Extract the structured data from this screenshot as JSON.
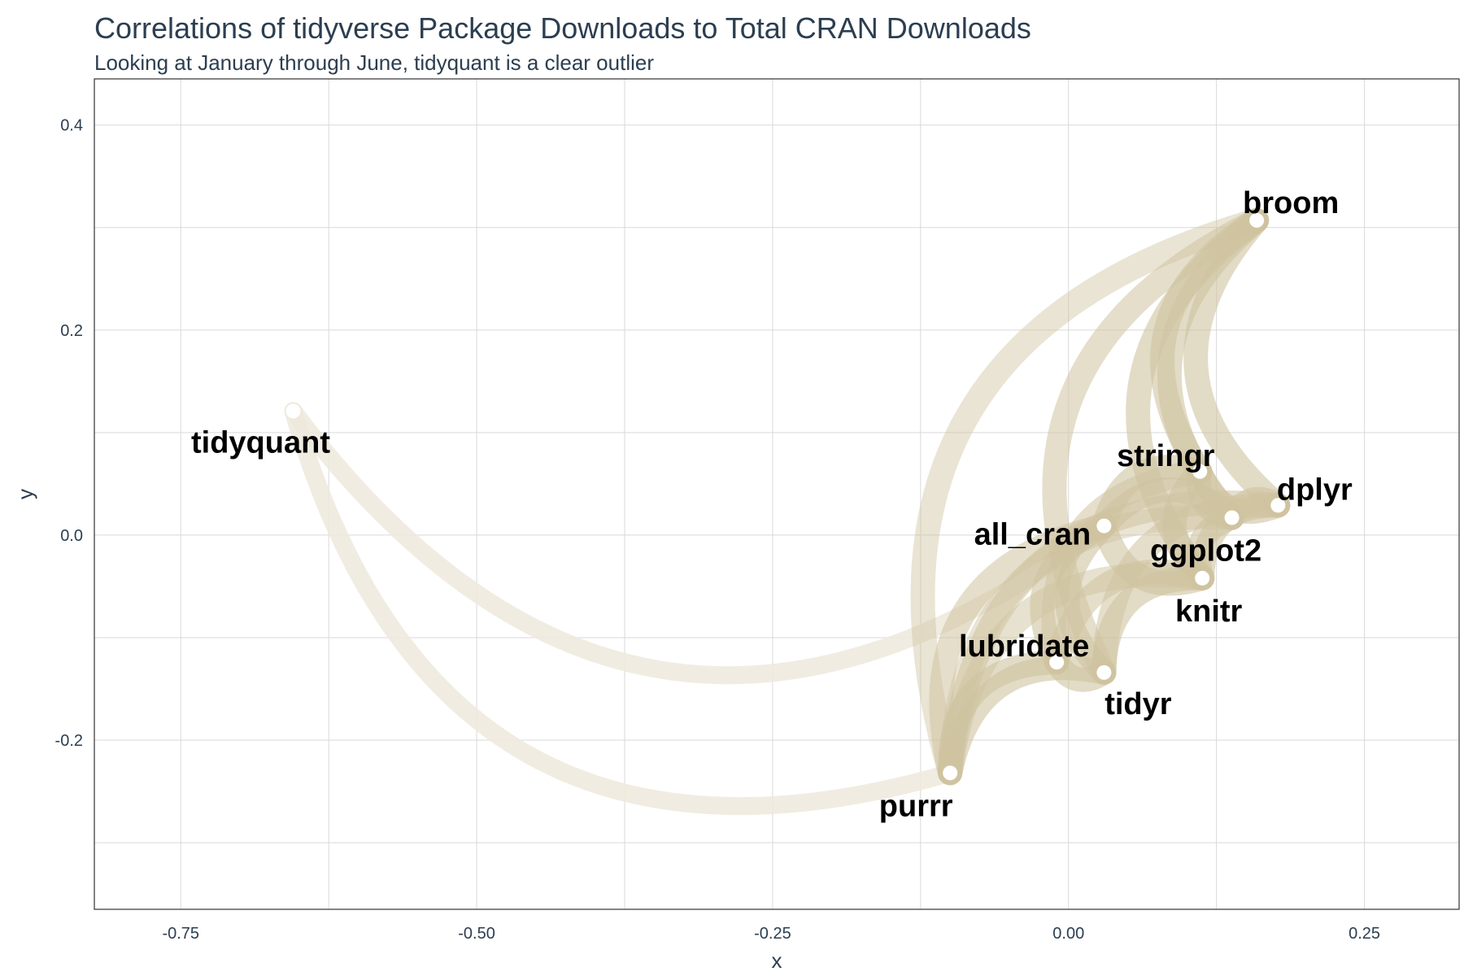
{
  "chart_data": {
    "type": "network",
    "title": "Correlations of tidyverse Package Downloads to Total CRAN Downloads",
    "subtitle": "Looking at January through June, tidyquant is a clear outlier",
    "xlabel": "x",
    "ylabel": "y",
    "xlim": [
      -0.823,
      0.33
    ],
    "ylim": [
      -0.365,
      0.445
    ],
    "x_ticks": [
      -0.75,
      -0.5,
      -0.25,
      0.0,
      0.25
    ],
    "x_tick_labels": [
      "-0.75",
      "-0.50",
      "-0.25",
      "0.00",
      "0.25"
    ],
    "y_ticks": [
      -0.2,
      0.0,
      0.2,
      0.4
    ],
    "y_tick_labels": [
      "-0.2",
      "0.0",
      "0.2",
      "0.4"
    ],
    "grid": true,
    "colors": {
      "edge": "#cfc3a0",
      "edge_faint": "#efe9dc",
      "node": "#ffffff",
      "axis_text": "#2c3e50",
      "grid": "#d9d9d9"
    },
    "nodes": [
      {
        "name": "broom",
        "x": 0.159,
        "y": 0.307
      },
      {
        "name": "tidyquant",
        "x": -0.655,
        "y": 0.121
      },
      {
        "name": "stringr",
        "x": 0.111,
        "y": 0.062
      },
      {
        "name": "dplyr",
        "x": 0.177,
        "y": 0.029
      },
      {
        "name": "ggplot2",
        "x": 0.138,
        "y": 0.017
      },
      {
        "name": "all_cran",
        "x": 0.03,
        "y": 0.009
      },
      {
        "name": "knitr",
        "x": 0.113,
        "y": -0.042
      },
      {
        "name": "lubridate",
        "x": -0.01,
        "y": -0.124
      },
      {
        "name": "tidyr",
        "x": 0.03,
        "y": -0.134
      },
      {
        "name": "purrr",
        "x": -0.1,
        "y": -0.232
      }
    ],
    "edges": [
      {
        "from": "tidyquant",
        "to": "all_cran",
        "strength": 0.15
      },
      {
        "from": "tidyquant",
        "to": "purrr",
        "strength": 0.15
      },
      {
        "from": "broom",
        "to": "dplyr",
        "strength": 0.6
      },
      {
        "from": "broom",
        "to": "ggplot2",
        "strength": 0.6
      },
      {
        "from": "broom",
        "to": "stringr",
        "strength": 0.6
      },
      {
        "from": "broom",
        "to": "knitr",
        "strength": 0.6
      },
      {
        "from": "broom",
        "to": "tidyr",
        "strength": 0.55
      },
      {
        "from": "broom",
        "to": "purrr",
        "strength": 0.45
      },
      {
        "from": "stringr",
        "to": "ggplot2",
        "strength": 0.6
      },
      {
        "from": "stringr",
        "to": "all_cran",
        "strength": 0.6
      },
      {
        "from": "stringr",
        "to": "dplyr",
        "strength": 0.6
      },
      {
        "from": "stringr",
        "to": "knitr",
        "strength": 0.6
      },
      {
        "from": "stringr",
        "to": "lubridate",
        "strength": 0.55
      },
      {
        "from": "dplyr",
        "to": "ggplot2",
        "strength": 0.6
      },
      {
        "from": "dplyr",
        "to": "knitr",
        "strength": 0.6
      },
      {
        "from": "dplyr",
        "to": "purrr",
        "strength": 0.55
      },
      {
        "from": "dplyr",
        "to": "tidyr",
        "strength": 0.55
      },
      {
        "from": "ggplot2",
        "to": "knitr",
        "strength": 0.6
      },
      {
        "from": "ggplot2",
        "to": "all_cran",
        "strength": 0.6
      },
      {
        "from": "all_cran",
        "to": "knitr",
        "strength": 0.6
      },
      {
        "from": "all_cran",
        "to": "lubridate",
        "strength": 0.6
      },
      {
        "from": "all_cran",
        "to": "tidyr",
        "strength": 0.6
      },
      {
        "from": "all_cran",
        "to": "purrr",
        "strength": 0.55
      },
      {
        "from": "knitr",
        "to": "tidyr",
        "strength": 0.6
      },
      {
        "from": "knitr",
        "to": "lubridate",
        "strength": 0.55
      },
      {
        "from": "knitr",
        "to": "purrr",
        "strength": 0.5
      },
      {
        "from": "lubridate",
        "to": "tidyr",
        "strength": 0.6
      },
      {
        "from": "lubridate",
        "to": "purrr",
        "strength": 0.6
      },
      {
        "from": "tidyr",
        "to": "purrr",
        "strength": 0.6
      },
      {
        "from": "ggplot2",
        "to": "purrr",
        "strength": 0.45
      }
    ]
  }
}
